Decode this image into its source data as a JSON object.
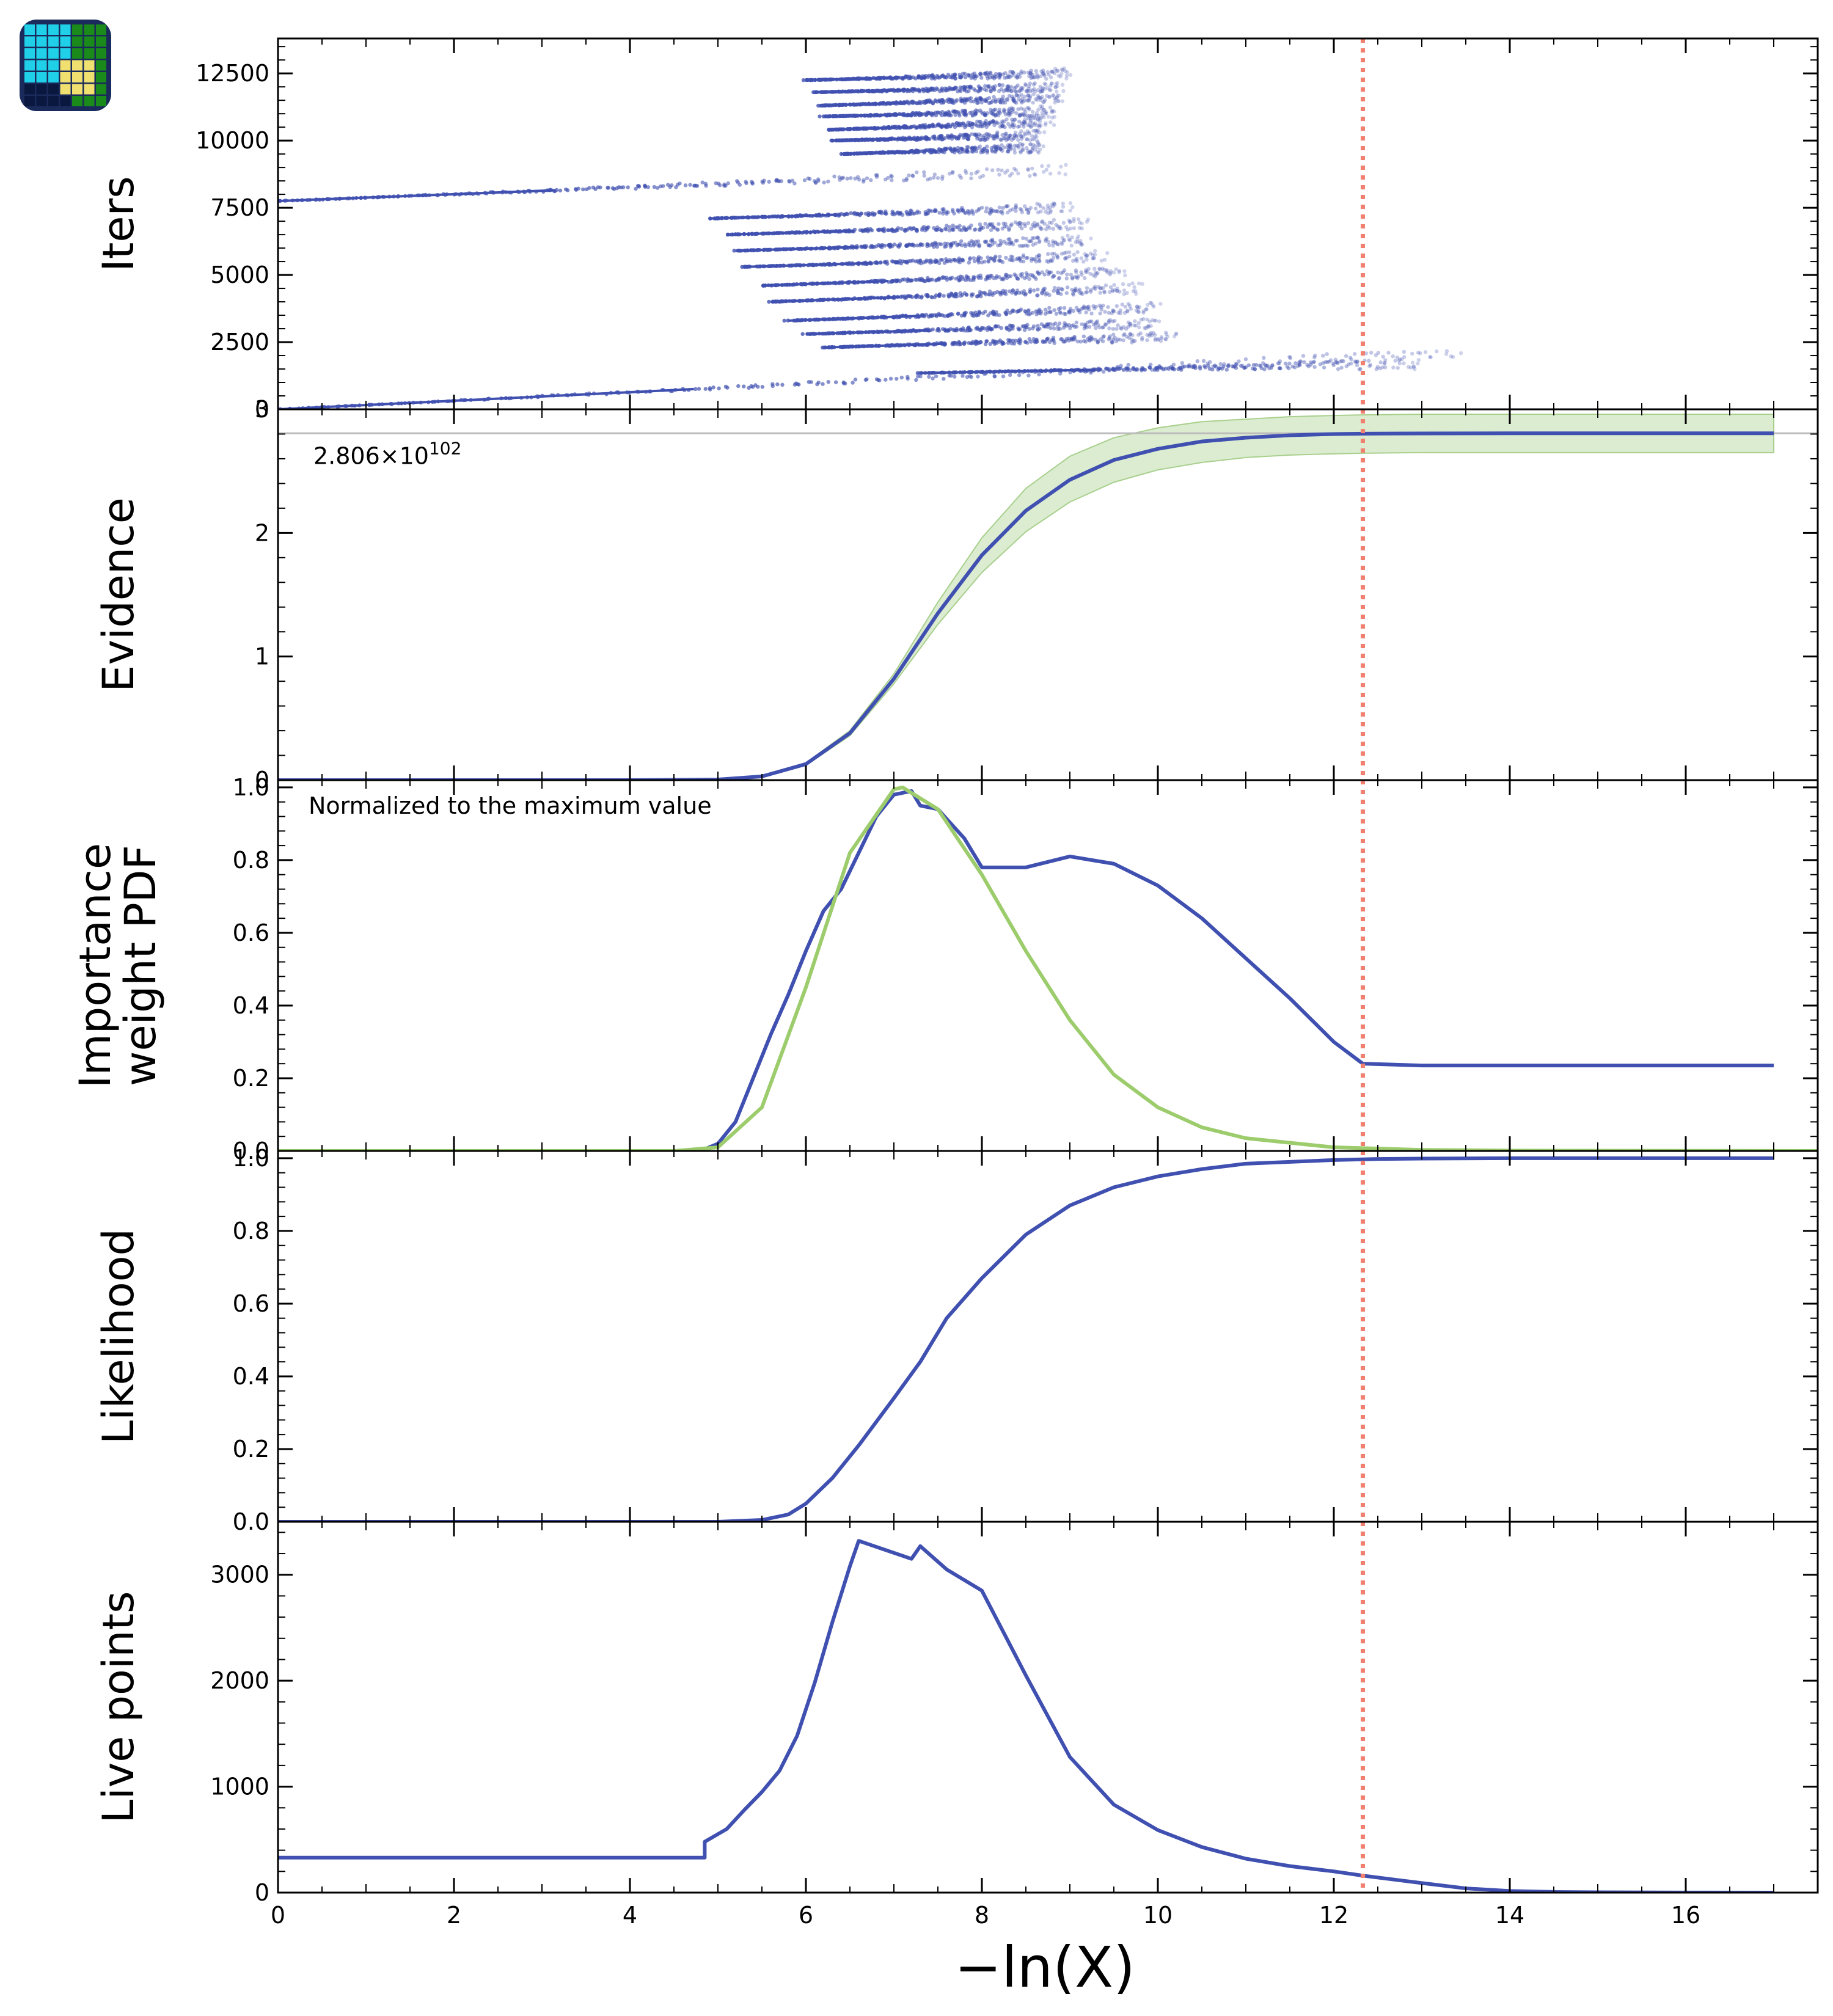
{
  "figure": {
    "xlabel": "−ln(X)",
    "xlim": [
      0,
      17.5
    ],
    "xticks": [
      0,
      2,
      4,
      6,
      8,
      10,
      12,
      14,
      16
    ],
    "vline_x": 12.33,
    "vline_color": "#f08070",
    "logo_name": "app-logo-icon"
  },
  "chart_data": [
    {
      "type": "scatter",
      "ylabel": "Iters",
      "ylim": [
        0,
        13800
      ],
      "yticks": [
        0,
        2500,
        5000,
        7500,
        10000,
        12500
      ],
      "ytick_labels": [
        "0",
        "2500",
        "5000",
        "7500",
        "10000",
        "12500"
      ],
      "color": "#4050b0",
      "threads": [
        {
          "x_start": 0.0,
          "x_end": 13.5,
          "y_start": 0,
          "y_end": 2150
        },
        {
          "x_start": 0.0,
          "x_end": 9.0,
          "y_start": 7750,
          "y_end": 8900
        },
        {
          "x_start": 6.0,
          "x_end": 9.0,
          "y_start": 12250,
          "y_end": 12500
        },
        {
          "x_start": 6.1,
          "x_end": 8.9,
          "y_start": 11800,
          "y_end": 12000
        },
        {
          "x_start": 6.15,
          "x_end": 8.9,
          "y_start": 11300,
          "y_end": 11600
        },
        {
          "x_start": 6.2,
          "x_end": 8.8,
          "y_start": 10900,
          "y_end": 11100
        },
        {
          "x_start": 6.25,
          "x_end": 8.8,
          "y_start": 10400,
          "y_end": 10700
        },
        {
          "x_start": 6.3,
          "x_end": 8.7,
          "y_start": 10000,
          "y_end": 10200
        },
        {
          "x_start": 6.4,
          "x_end": 8.7,
          "y_start": 9500,
          "y_end": 9750
        },
        {
          "x_start": 4.9,
          "x_end": 9.0,
          "y_start": 7100,
          "y_end": 7500
        },
        {
          "x_start": 5.1,
          "x_end": 9.2,
          "y_start": 6500,
          "y_end": 6900
        },
        {
          "x_start": 5.2,
          "x_end": 9.2,
          "y_start": 5900,
          "y_end": 6300
        },
        {
          "x_start": 5.3,
          "x_end": 9.4,
          "y_start": 5300,
          "y_end": 5700
        },
        {
          "x_start": 5.5,
          "x_end": 9.6,
          "y_start": 4600,
          "y_end": 5100
        },
        {
          "x_start": 5.6,
          "x_end": 9.8,
          "y_start": 4000,
          "y_end": 4500
        },
        {
          "x_start": 5.8,
          "x_end": 10.0,
          "y_start": 3300,
          "y_end": 3800
        },
        {
          "x_start": 6.0,
          "x_end": 10.0,
          "y_start": 2800,
          "y_end": 3200
        },
        {
          "x_start": 6.2,
          "x_end": 10.2,
          "y_start": 2300,
          "y_end": 2700
        },
        {
          "x_start": 7.3,
          "x_end": 13.0,
          "y_start": 1350,
          "y_end": 1700
        }
      ]
    },
    {
      "type": "line",
      "ylabel": "Evidence",
      "ylim": [
        0,
        3.0
      ],
      "yticks": [
        0,
        1,
        2,
        3
      ],
      "ytick_labels": [
        "0",
        "1",
        "2",
        "3"
      ],
      "color": "#4050b0",
      "band_color": "#a8d08d",
      "hline": 2.806,
      "annotation": "2.806×10",
      "annotation_exp": "102",
      "x": [
        0,
        4,
        5,
        5.5,
        6,
        6.5,
        7,
        7.5,
        8,
        8.5,
        9,
        9.5,
        10,
        10.5,
        11,
        11.5,
        12,
        12.33,
        13,
        14,
        15,
        16,
        17
      ],
      "values": [
        0,
        0,
        0.005,
        0.03,
        0.13,
        0.38,
        0.82,
        1.35,
        1.82,
        2.18,
        2.43,
        2.59,
        2.68,
        2.74,
        2.77,
        2.79,
        2.8,
        2.803,
        2.805,
        2.806,
        2.806,
        2.806,
        2.806
      ],
      "band_lower": [
        0,
        0,
        0.004,
        0.028,
        0.12,
        0.36,
        0.78,
        1.26,
        1.68,
        2.01,
        2.25,
        2.41,
        2.51,
        2.57,
        2.61,
        2.63,
        2.64,
        2.645,
        2.65,
        2.65,
        2.65,
        2.65,
        2.65
      ],
      "band_upper": [
        0,
        0,
        0.006,
        0.032,
        0.14,
        0.4,
        0.86,
        1.44,
        1.96,
        2.36,
        2.62,
        2.77,
        2.85,
        2.9,
        2.92,
        2.94,
        2.95,
        2.955,
        2.96,
        2.96,
        2.96,
        2.96,
        2.96
      ]
    },
    {
      "type": "line",
      "ylabel": "Importance\nweight PDF",
      "ylim": [
        0,
        1.02
      ],
      "yticks": [
        0.0,
        0.2,
        0.4,
        0.6,
        0.8,
        1.0
      ],
      "ytick_labels": [
        "0.0",
        "0.2",
        "0.4",
        "0.6",
        "0.8",
        "1.0"
      ],
      "annotation": "Normalized to the maximum value",
      "series": [
        {
          "color": "#4050b0",
          "x": [
            0,
            4.8,
            5.0,
            5.2,
            5.4,
            5.6,
            5.8,
            6.0,
            6.2,
            6.4,
            6.6,
            6.8,
            7.0,
            7.2,
            7.3,
            7.5,
            7.8,
            8.0,
            8.5,
            9.0,
            9.5,
            10.0,
            10.5,
            11.0,
            11.5,
            12.0,
            12.33,
            13,
            14,
            15,
            16,
            17
          ],
          "values": [
            0,
            0,
            0.02,
            0.08,
            0.2,
            0.32,
            0.43,
            0.55,
            0.66,
            0.72,
            0.82,
            0.92,
            0.98,
            0.99,
            0.95,
            0.94,
            0.86,
            0.78,
            0.78,
            0.81,
            0.79,
            0.73,
            0.64,
            0.53,
            0.42,
            0.3,
            0.24,
            0.235,
            0.235,
            0.235,
            0.235,
            0.235
          ]
        },
        {
          "color": "#9ccc6c",
          "x": [
            0,
            4.5,
            5.0,
            5.5,
            6.0,
            6.5,
            7.0,
            7.1,
            7.5,
            8.0,
            8.5,
            9.0,
            9.5,
            10.0,
            10.5,
            11.0,
            12.0,
            13.0,
            14.0,
            17.5
          ],
          "values": [
            0,
            0,
            0.01,
            0.12,
            0.45,
            0.82,
            0.995,
            1.0,
            0.94,
            0.76,
            0.55,
            0.36,
            0.21,
            0.12,
            0.065,
            0.035,
            0.01,
            0.003,
            0.001,
            0
          ]
        }
      ]
    },
    {
      "type": "line",
      "ylabel": "Likelihood",
      "ylim": [
        0,
        1.02
      ],
      "yticks": [
        0.0,
        0.2,
        0.4,
        0.6,
        0.8,
        1.0
      ],
      "ytick_labels": [
        "0.0",
        "0.2",
        "0.4",
        "0.6",
        "0.8",
        "1.0"
      ],
      "color": "#4050b0",
      "x": [
        0,
        5,
        5.5,
        5.8,
        6.0,
        6.3,
        6.6,
        7.0,
        7.3,
        7.6,
        8.0,
        8.5,
        9.0,
        9.5,
        10.0,
        10.5,
        11.0,
        11.5,
        12.0,
        12.5,
        13,
        14,
        15,
        16,
        17
      ],
      "values": [
        0,
        0,
        0.005,
        0.02,
        0.05,
        0.12,
        0.21,
        0.34,
        0.44,
        0.56,
        0.67,
        0.79,
        0.87,
        0.92,
        0.95,
        0.97,
        0.985,
        0.99,
        0.995,
        0.998,
        0.999,
        1.0,
        1.0,
        1.0,
        1.0
      ]
    },
    {
      "type": "line",
      "ylabel": "Live points",
      "ylim": [
        0,
        3500
      ],
      "yticks": [
        0,
        1000,
        2000,
        3000
      ],
      "ytick_labels": [
        "0",
        "1000",
        "2000",
        "3000"
      ],
      "color": "#4050b0",
      "x": [
        0,
        4.85,
        4.85,
        5.1,
        5.3,
        5.5,
        5.7,
        5.9,
        6.1,
        6.3,
        6.5,
        6.6,
        7.2,
        7.3,
        7.6,
        8.0,
        8.5,
        9.0,
        9.5,
        10.0,
        10.5,
        11.0,
        11.5,
        12.0,
        12.33,
        13.0,
        13.5,
        14.0,
        14.5,
        15.0,
        16.0,
        17.0
      ],
      "values": [
        330,
        330,
        480,
        600,
        780,
        950,
        1150,
        1480,
        1980,
        2550,
        3080,
        3320,
        3150,
        3270,
        3050,
        2850,
        2050,
        1280,
        830,
        590,
        430,
        320,
        250,
        200,
        160,
        90,
        40,
        15,
        6,
        3,
        1,
        0
      ]
    }
  ]
}
